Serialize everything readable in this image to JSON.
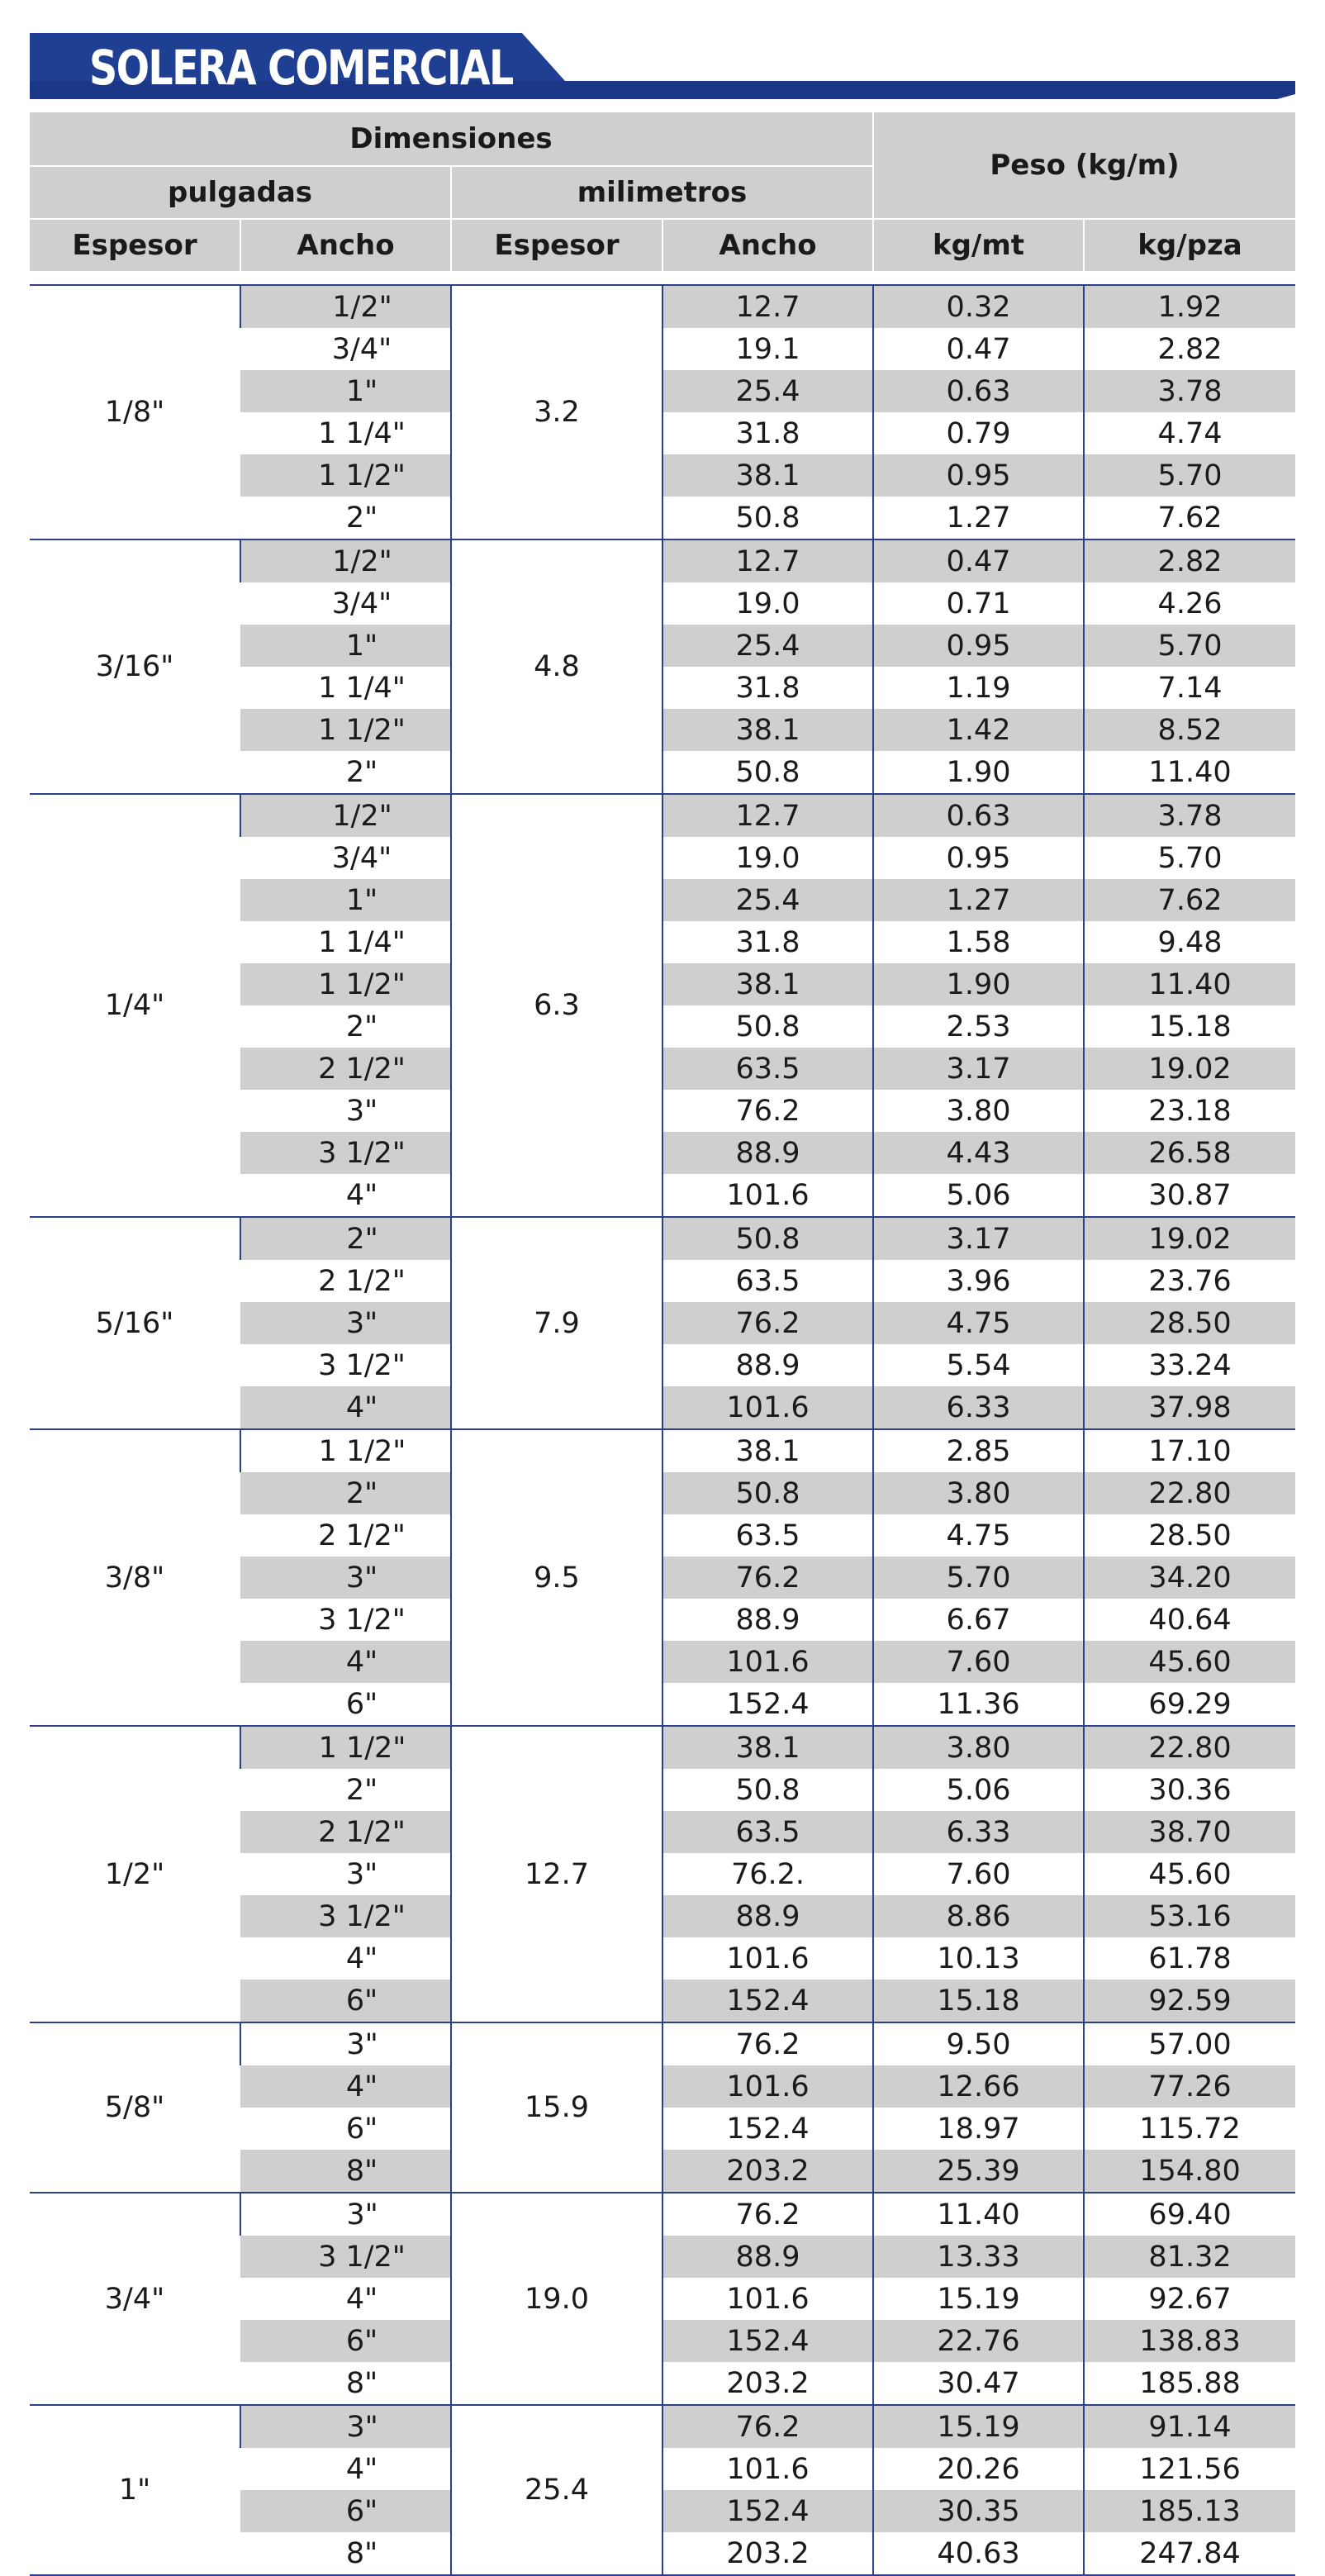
{
  "title": "SOLERA COMERCIAL",
  "colors": {
    "banner": "#1f3f93",
    "banner_stripe": "#1a3788",
    "row_shade": "#cfcfcf",
    "rule": "#2c3e8c"
  },
  "header": {
    "dimensiones": "Dimensiones",
    "pulgadas": "pulgadas",
    "milimetros": "milimetros",
    "peso": "Peso (kg/m)",
    "espesor_in": "Espesor",
    "ancho_in": "Ancho",
    "espesor_mm": "Espesor",
    "ancho_mm": "Ancho",
    "kg_mt": "kg/mt",
    "kg_pza": "kg/pza"
  },
  "groups": [
    {
      "espesor_in": "1/8\"",
      "espesor_mm": "3.2",
      "rows": [
        [
          "1/2\"",
          "12.7",
          "0.32",
          "1.92"
        ],
        [
          "3/4\"",
          "19.1",
          "0.47",
          "2.82"
        ],
        [
          "1\"",
          "25.4",
          "0.63",
          "3.78"
        ],
        [
          "1 1/4\"",
          "31.8",
          "0.79",
          "4.74"
        ],
        [
          "1 1/2\"",
          "38.1",
          "0.95",
          "5.70"
        ],
        [
          "2\"",
          "50.8",
          "1.27",
          "7.62"
        ]
      ]
    },
    {
      "espesor_in": "3/16\"",
      "espesor_mm": "4.8",
      "rows": [
        [
          "1/2\"",
          "12.7",
          "0.47",
          "2.82"
        ],
        [
          "3/4\"",
          "19.0",
          "0.71",
          "4.26"
        ],
        [
          "1\"",
          "25.4",
          "0.95",
          "5.70"
        ],
        [
          "1 1/4\"",
          "31.8",
          "1.19",
          "7.14"
        ],
        [
          "1 1/2\"",
          "38.1",
          "1.42",
          "8.52"
        ],
        [
          "2\"",
          "50.8",
          "1.90",
          "11.40"
        ]
      ]
    },
    {
      "espesor_in": "1/4\"",
      "espesor_mm": "6.3",
      "rows": [
        [
          "1/2\"",
          "12.7",
          "0.63",
          "3.78"
        ],
        [
          "3/4\"",
          "19.0",
          "0.95",
          "5.70"
        ],
        [
          "1\"",
          "25.4",
          "1.27",
          "7.62"
        ],
        [
          "1 1/4\"",
          "31.8",
          "1.58",
          "9.48"
        ],
        [
          "1 1/2\"",
          "38.1",
          "1.90",
          "11.40"
        ],
        [
          "2\"",
          "50.8",
          "2.53",
          "15.18"
        ],
        [
          "2 1/2\"",
          "63.5",
          "3.17",
          "19.02"
        ],
        [
          "3\"",
          "76.2",
          "3.80",
          "23.18"
        ],
        [
          "3 1/2\"",
          "88.9",
          "4.43",
          "26.58"
        ],
        [
          "4\"",
          "101.6",
          "5.06",
          "30.87"
        ]
      ]
    },
    {
      "espesor_in": "5/16\"",
      "espesor_mm": "7.9",
      "rows": [
        [
          "2\"",
          "50.8",
          "3.17",
          "19.02"
        ],
        [
          "2 1/2\"",
          "63.5",
          "3.96",
          "23.76"
        ],
        [
          "3\"",
          "76.2",
          "4.75",
          "28.50"
        ],
        [
          "3 1/2\"",
          "88.9",
          "5.54",
          "33.24"
        ],
        [
          "4\"",
          "101.6",
          "6.33",
          "37.98"
        ]
      ]
    },
    {
      "espesor_in": "3/8\"",
      "espesor_mm": "9.5",
      "rows": [
        [
          "1 1/2\"",
          "38.1",
          "2.85",
          "17.10"
        ],
        [
          "2\"",
          "50.8",
          "3.80",
          "22.80"
        ],
        [
          "2 1/2\"",
          "63.5",
          "4.75",
          "28.50"
        ],
        [
          "3\"",
          "76.2",
          "5.70",
          "34.20"
        ],
        [
          "3 1/2\"",
          "88.9",
          "6.67",
          "40.64"
        ],
        [
          "4\"",
          "101.6",
          "7.60",
          "45.60"
        ],
        [
          "6\"",
          "152.4",
          "11.36",
          "69.29"
        ]
      ]
    },
    {
      "espesor_in": "1/2\"",
      "espesor_mm": "12.7",
      "rows": [
        [
          "1 1/2\"",
          "38.1",
          "3.80",
          "22.80"
        ],
        [
          "2\"",
          "50.8",
          "5.06",
          "30.36"
        ],
        [
          "2 1/2\"",
          "63.5",
          "6.33",
          "38.70"
        ],
        [
          "3\"",
          "76.2.",
          "7.60",
          "45.60"
        ],
        [
          "3 1/2\"",
          "88.9",
          "8.86",
          "53.16"
        ],
        [
          "4\"",
          "101.6",
          "10.13",
          "61.78"
        ],
        [
          "6\"",
          "152.4",
          "15.18",
          "92.59"
        ]
      ]
    },
    {
      "espesor_in": "5/8\"",
      "espesor_mm": "15.9",
      "rows": [
        [
          "3\"",
          "76.2",
          "9.50",
          "57.00"
        ],
        [
          "4\"",
          "101.6",
          "12.66",
          "77.26"
        ],
        [
          "6\"",
          "152.4",
          "18.97",
          "115.72"
        ],
        [
          "8\"",
          "203.2",
          "25.39",
          "154.80"
        ]
      ]
    },
    {
      "espesor_in": "3/4\"",
      "espesor_mm": "19.0",
      "rows": [
        [
          "3\"",
          "76.2",
          "11.40",
          "69.40"
        ],
        [
          "3 1/2\"",
          "88.9",
          "13.33",
          "81.32"
        ],
        [
          "4\"",
          "101.6",
          "15.19",
          "92.67"
        ],
        [
          "6\"",
          "152.4",
          "22.76",
          "138.83"
        ],
        [
          "8\"",
          "203.2",
          "30.47",
          "185.88"
        ]
      ]
    },
    {
      "espesor_in": "1\"",
      "espesor_mm": "25.4",
      "rows": [
        [
          "3\"",
          "76.2",
          "15.19",
          "91.14"
        ],
        [
          "4\"",
          "101.6",
          "20.26",
          "121.56"
        ],
        [
          "6\"",
          "152.4",
          "30.35",
          "185.13"
        ],
        [
          "8\"",
          "203.2",
          "40.63",
          "247.84"
        ]
      ]
    }
  ]
}
